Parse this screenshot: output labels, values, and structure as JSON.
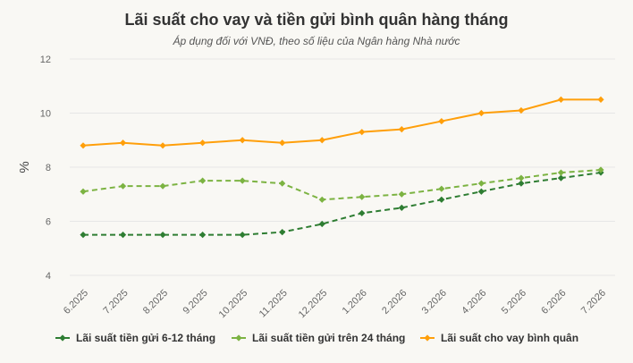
{
  "chart_data": {
    "type": "line",
    "title": "Lãi suất cho vay và tiền gửi bình quân hàng tháng",
    "subtitle": "Áp dụng đối với VNĐ, theo số liệu của Ngân hàng Nhà nước",
    "ylabel": "%",
    "xlabel": "",
    "ylim": [
      4,
      12
    ],
    "yticks": [
      "4",
      "6",
      "8",
      "10",
      "12"
    ],
    "grid": true,
    "legend": "bottom",
    "categories": [
      "6.2025",
      "7.2025",
      "8.2025",
      "9.2025",
      "10.2025",
      "11.2025",
      "12.2025",
      "1.2026",
      "2.2026",
      "3.2026",
      "4.2026",
      "5.2026",
      "6.2026",
      "7.2026"
    ],
    "series": [
      {
        "name": "Lãi suất tiền gửi 6-12 tháng",
        "color": "#2e7d32",
        "values": [
          5.5,
          5.5,
          5.5,
          5.5,
          5.5,
          5.6,
          5.9,
          6.3,
          6.5,
          6.8,
          7.1,
          7.4,
          7.6,
          7.8
        ]
      },
      {
        "name": "Lãi suất tiền gửi trên 24 tháng",
        "color": "#7cb342",
        "values": [
          7.1,
          7.3,
          7.3,
          7.5,
          7.5,
          7.4,
          6.8,
          6.9,
          7.0,
          7.2,
          7.4,
          7.6,
          7.8,
          7.9
        ]
      },
      {
        "name": "Lãi suất cho vay bình quân",
        "color": "#ff9f0a",
        "values": [
          8.8,
          8.9,
          8.8,
          8.9,
          9.0,
          8.9,
          9.0,
          9.3,
          9.4,
          9.7,
          10.0,
          10.1,
          10.5,
          10.5
        ]
      }
    ]
  }
}
